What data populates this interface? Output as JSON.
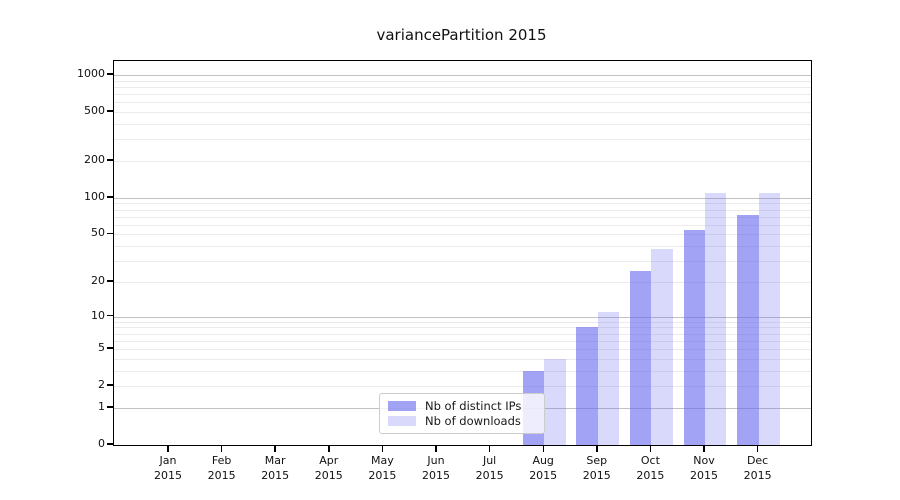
{
  "title": "variancePartition 2015",
  "chart_data": {
    "type": "bar",
    "title": "variancePartition 2015",
    "y_scale": "log1p",
    "grid": "horizontal",
    "legend_position": "bottom-center-inside",
    "categories": [
      "Jan 2015",
      "Feb 2015",
      "Mar 2015",
      "Apr 2015",
      "May 2015",
      "Jun 2015",
      "Jul 2015",
      "Aug 2015",
      "Sep 2015",
      "Oct 2015",
      "Nov 2015",
      "Dec 2015"
    ],
    "series": [
      {
        "name": "Nb of distinct IPs",
        "values": [
          0,
          0,
          0,
          0,
          0,
          0,
          0,
          3,
          8,
          25,
          54,
          72
        ]
      },
      {
        "name": "Nb of downloads",
        "values": [
          0,
          0,
          0,
          0,
          0,
          0,
          0,
          4,
          11,
          38,
          110,
          110
        ]
      }
    ],
    "y_ticks": [
      0,
      1,
      2,
      5,
      10,
      20,
      50,
      100,
      200,
      500,
      1000
    ],
    "y_major_gridlines": [
      1,
      10,
      100,
      1000
    ],
    "ylim": [
      0,
      1300
    ]
  },
  "colors": {
    "ips_bar": "rgba(102,102,240,0.6)",
    "downloads_bar": "rgba(102,102,240,0.25)",
    "grid_major": "#c2c2c2",
    "grid_minor": "#ebebeb",
    "axis": "#000000"
  }
}
